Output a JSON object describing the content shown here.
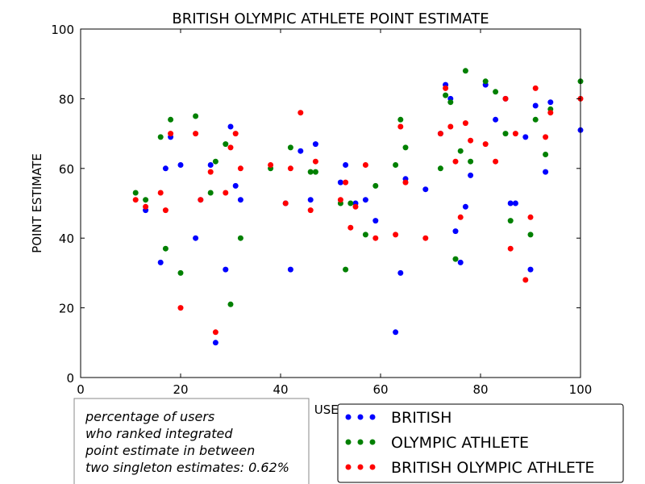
{
  "chart_data": {
    "type": "scatter",
    "title": "BRITISH OLYMPIC ATHLETE POINT ESTIMATE",
    "xlabel": "USER",
    "ylabel": "POINT ESTIMATE",
    "xlim": [
      0,
      100
    ],
    "ylim": [
      0,
      100
    ],
    "xticks": [
      "0",
      "20",
      "40",
      "60",
      "80",
      "100"
    ],
    "yticks": [
      "0",
      "20",
      "40",
      "60",
      "80",
      "100"
    ],
    "grid": false,
    "legend_position": "bottom-right",
    "series": [
      {
        "name": "BRITISH",
        "color": "#0000ff",
        "points": [
          [
            13,
            48
          ],
          [
            16,
            33
          ],
          [
            17,
            60
          ],
          [
            18,
            69
          ],
          [
            20,
            61
          ],
          [
            23,
            40
          ],
          [
            24,
            51
          ],
          [
            26,
            61
          ],
          [
            27,
            10
          ],
          [
            29,
            31
          ],
          [
            30,
            72
          ],
          [
            31,
            55
          ],
          [
            32,
            51
          ],
          [
            41,
            50
          ],
          [
            42,
            31
          ],
          [
            44,
            65
          ],
          [
            46,
            51
          ],
          [
            47,
            67
          ],
          [
            52,
            56
          ],
          [
            53,
            61
          ],
          [
            55,
            50
          ],
          [
            57,
            51
          ],
          [
            59,
            45
          ],
          [
            63,
            13
          ],
          [
            64,
            30
          ],
          [
            65,
            57
          ],
          [
            69,
            54
          ],
          [
            72,
            70
          ],
          [
            73,
            84
          ],
          [
            74,
            80
          ],
          [
            75,
            42
          ],
          [
            76,
            33
          ],
          [
            77,
            49
          ],
          [
            78,
            58
          ],
          [
            81,
            84
          ],
          [
            83,
            74
          ],
          [
            85,
            80
          ],
          [
            86,
            50
          ],
          [
            87,
            50
          ],
          [
            89,
            69
          ],
          [
            90,
            31
          ],
          [
            91,
            78
          ],
          [
            93,
            59
          ],
          [
            94,
            79
          ],
          [
            100,
            71
          ]
        ]
      },
      {
        "name": "OLYMPIC ATHLETE",
        "color": "#008000",
        "points": [
          [
            11,
            53
          ],
          [
            13,
            51
          ],
          [
            16,
            69
          ],
          [
            17,
            37
          ],
          [
            18,
            74
          ],
          [
            20,
            30
          ],
          [
            23,
            75
          ],
          [
            26,
            53
          ],
          [
            27,
            62
          ],
          [
            29,
            67
          ],
          [
            30,
            21
          ],
          [
            32,
            40
          ],
          [
            38,
            60
          ],
          [
            42,
            66
          ],
          [
            46,
            59
          ],
          [
            47,
            59
          ],
          [
            52,
            50
          ],
          [
            53,
            31
          ],
          [
            54,
            50
          ],
          [
            57,
            41
          ],
          [
            59,
            55
          ],
          [
            63,
            61
          ],
          [
            64,
            74
          ],
          [
            65,
            66
          ],
          [
            72,
            60
          ],
          [
            73,
            81
          ],
          [
            74,
            79
          ],
          [
            75,
            34
          ],
          [
            76,
            65
          ],
          [
            77,
            88
          ],
          [
            78,
            62
          ],
          [
            81,
            85
          ],
          [
            83,
            82
          ],
          [
            85,
            70
          ],
          [
            86,
            45
          ],
          [
            90,
            41
          ],
          [
            91,
            74
          ],
          [
            93,
            64
          ],
          [
            94,
            77
          ],
          [
            100,
            85
          ]
        ]
      },
      {
        "name": "BRITISH OLYMPIC ATHLETE",
        "color": "#ff0000",
        "points": [
          [
            11,
            51
          ],
          [
            13,
            49
          ],
          [
            16,
            53
          ],
          [
            17,
            48
          ],
          [
            18,
            70
          ],
          [
            20,
            20
          ],
          [
            23,
            70
          ],
          [
            24,
            51
          ],
          [
            26,
            59
          ],
          [
            27,
            13
          ],
          [
            29,
            53
          ],
          [
            30,
            66
          ],
          [
            31,
            70
          ],
          [
            32,
            60
          ],
          [
            38,
            61
          ],
          [
            41,
            50
          ],
          [
            42,
            60
          ],
          [
            44,
            76
          ],
          [
            46,
            48
          ],
          [
            47,
            62
          ],
          [
            52,
            51
          ],
          [
            53,
            56
          ],
          [
            54,
            43
          ],
          [
            55,
            49
          ],
          [
            57,
            61
          ],
          [
            59,
            40
          ],
          [
            63,
            41
          ],
          [
            64,
            72
          ],
          [
            65,
            56
          ],
          [
            69,
            40
          ],
          [
            72,
            70
          ],
          [
            73,
            83
          ],
          [
            74,
            72
          ],
          [
            75,
            62
          ],
          [
            76,
            46
          ],
          [
            77,
            73
          ],
          [
            78,
            68
          ],
          [
            81,
            67
          ],
          [
            83,
            62
          ],
          [
            85,
            80
          ],
          [
            86,
            37
          ],
          [
            87,
            70
          ],
          [
            89,
            28
          ],
          [
            90,
            46
          ],
          [
            91,
            83
          ],
          [
            93,
            69
          ],
          [
            94,
            76
          ],
          [
            100,
            80
          ]
        ]
      }
    ]
  },
  "note": {
    "lines": [
      "percentage of users",
      "who ranked integrated",
      "point estimate in between",
      "two singleton estimates: 0.62%"
    ]
  }
}
